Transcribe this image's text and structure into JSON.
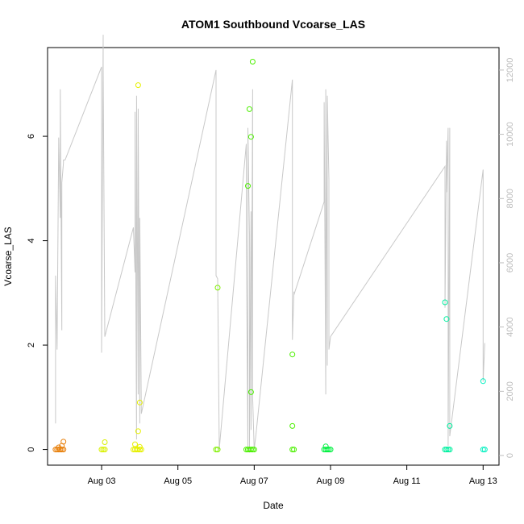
{
  "chart_data": {
    "type": "scatter",
    "title": "ATOM1 Southbound Vcoarse_LAS",
    "xlabel": "Date",
    "ylabel": "Vcoarse_LAS",
    "ylabel_right": "",
    "x_ticks": [
      "Aug 03",
      "Aug 05",
      "Aug 07",
      "Aug 09",
      "Aug 11",
      "Aug 13"
    ],
    "y_ticks": [
      "0",
      "2",
      "4",
      "6"
    ],
    "y_right_ticks": [
      "0",
      "2000",
      "4000",
      "6000",
      "8000",
      "10000",
      "12000"
    ],
    "xlim": [
      "2020-08-01T14:00",
      "2020-08-13T10:00"
    ],
    "ylim": [
      -0.3,
      7.7
    ],
    "y_right_lim": [
      -300,
      12700
    ],
    "grid": false,
    "line_color": "#c8c8c8",
    "scatter_series": [
      {
        "color": "#e8800c",
        "x": [
          "2020-08-01T19:00",
          "2020-08-01T20:00",
          "2020-08-01T21:00",
          "2020-08-01T22:00",
          "2020-08-01T23:00",
          "2020-08-02T00:00",
          "2020-08-01T21:00",
          "2020-08-01T23:00",
          "2020-08-02T00:00"
        ],
        "y": [
          0,
          0,
          0,
          0,
          0,
          0,
          0.04,
          0.07,
          0.15
        ]
      },
      {
        "color": "#d9f000",
        "x": [
          "2020-08-03T00:00",
          "2020-08-03T01:00",
          "2020-08-03T02:00",
          "2020-08-03T02:00"
        ],
        "y": [
          0,
          0,
          0,
          0.14
        ]
      },
      {
        "color": "#e6f000",
        "x": [
          "2020-08-03T20:00",
          "2020-08-03T21:00",
          "2020-08-03T22:00",
          "2020-08-03T23:00",
          "2020-08-04T00:00",
          "2020-08-04T01:00",
          "2020-08-03T21:00",
          "2020-08-03T23:00",
          "2020-08-04T00:00",
          "2020-08-04T00:00",
          "2020-08-03T23:00"
        ],
        "y": [
          0,
          0,
          0,
          0,
          0,
          0,
          0.1,
          0.35,
          0.9,
          0.05,
          6.98
        ]
      },
      {
        "color": "#80f000",
        "x": [
          "2020-08-06T00:00",
          "2020-08-06T01:00",
          "2020-08-06T01:00"
        ],
        "y": [
          0,
          0,
          3.1
        ]
      },
      {
        "color": "#4cf000",
        "x": [
          "2020-08-06T19:00",
          "2020-08-06T20:00",
          "2020-08-06T21:00",
          "2020-08-06T22:00",
          "2020-08-06T23:00",
          "2020-08-07T00:00",
          "2020-08-06T20:00",
          "2020-08-06T22:00",
          "2020-08-06T21:00",
          "2020-08-06T22:00",
          "2020-08-06T23:00"
        ],
        "y": [
          0,
          0,
          0,
          0,
          0,
          0,
          5.05,
          1.1,
          6.52,
          5.99,
          7.43
        ]
      },
      {
        "color": "#4cf000",
        "x": [
          "2020-08-08T00:00",
          "2020-08-08T01:00",
          "2020-08-08T00:00",
          "2020-08-08T00:00"
        ],
        "y": [
          0,
          0,
          0.45,
          1.82
        ]
      },
      {
        "color": "#00f040",
        "x": [
          "2020-08-08T20:00",
          "2020-08-08T21:00",
          "2020-08-08T22:00",
          "2020-08-08T23:00",
          "2020-08-09T00:00",
          "2020-08-08T21:00"
        ],
        "y": [
          0,
          0,
          0,
          0,
          0,
          0.06
        ]
      },
      {
        "color": "#00f0a0",
        "x": [
          "2020-08-12T00:00",
          "2020-08-12T01:00",
          "2020-08-12T02:00",
          "2020-08-12T03:00",
          "2020-08-12T00:00",
          "2020-08-12T01:00",
          "2020-08-12T03:00"
        ],
        "y": [
          0,
          0,
          0,
          0,
          2.82,
          2.5,
          0.45
        ]
      },
      {
        "color": "#00f0c0",
        "x": [
          "2020-08-13T00:00",
          "2020-08-13T01:00",
          "2020-08-13T00:00"
        ],
        "y": [
          0,
          0,
          1.31
        ]
      }
    ],
    "line_series_right": {
      "x": [
        "2020-08-01T19:00",
        "2020-08-01T19:00",
        "2020-08-01T20:00",
        "2020-08-01T21:00",
        "2020-08-01T21:00",
        "2020-08-01T22:00",
        "2020-08-01T22:00",
        "2020-08-01T23:00",
        "2020-08-01T23:00",
        "2020-08-02T00:00",
        "2020-08-02T00:00",
        "2020-08-02T01:00",
        "2020-08-03T00:00",
        "2020-08-03T00:00",
        "2020-08-03T01:00",
        "2020-08-03T01:00",
        "2020-08-03T02:00",
        "2020-08-03T20:00",
        "2020-08-03T21:00",
        "2020-08-03T21:00",
        "2020-08-03T22:00",
        "2020-08-03T22:00",
        "2020-08-03T23:00",
        "2020-08-03T23:00",
        "2020-08-04T00:00",
        "2020-08-04T00:00",
        "2020-08-04T01:00",
        "2020-08-06T00:00",
        "2020-08-06T00:00",
        "2020-08-06T01:00",
        "2020-08-06T02:00",
        "2020-08-06T19:00",
        "2020-08-06T19:00",
        "2020-08-06T20:00",
        "2020-08-06T20:00",
        "2020-08-06T21:00",
        "2020-08-06T21:00",
        "2020-08-06T22:00",
        "2020-08-06T22:00",
        "2020-08-06T23:00",
        "2020-08-06T23:00",
        "2020-08-07T00:00",
        "2020-08-07T01:00",
        "2020-08-08T00:00",
        "2020-08-08T00:00",
        "2020-08-08T01:00",
        "2020-08-08T01:00",
        "2020-08-08T20:00",
        "2020-08-08T20:00",
        "2020-08-08T21:00",
        "2020-08-08T21:00",
        "2020-08-08T22:00",
        "2020-08-08T22:00",
        "2020-08-08T23:00",
        "2020-08-08T23:00",
        "2020-08-09T00:00",
        "2020-08-12T00:00",
        "2020-08-12T00:00",
        "2020-08-12T01:00",
        "2020-08-12T01:00",
        "2020-08-12T02:00",
        "2020-08-12T02:00",
        "2020-08-12T03:00",
        "2020-08-12T03:00",
        "2020-08-13T00:00",
        "2020-08-13T00:00",
        "2020-08-13T01:00"
      ],
      "y": [
        1000,
        5600,
        3300,
        9800,
        9900,
        7400,
        11400,
        3900,
        8500,
        9100,
        9200,
        9200,
        12100,
        3200,
        13100,
        12000,
        3700,
        7100,
        5700,
        10700,
        500,
        11200,
        1900,
        10800,
        1000,
        7400,
        1300,
        12000,
        5600,
        5500,
        200,
        9700,
        6700,
        200,
        10200,
        6900,
        100,
        7600,
        800,
        11400,
        1800,
        200,
        600,
        11700,
        3600,
        5100,
        5000,
        7900,
        11000,
        1900,
        11400,
        2800,
        11200,
        8600,
        3300,
        3700,
        9000,
        4600,
        9800,
        8200,
        10200,
        300,
        10200,
        600,
        8900,
        2300,
        3500
      ]
    }
  }
}
